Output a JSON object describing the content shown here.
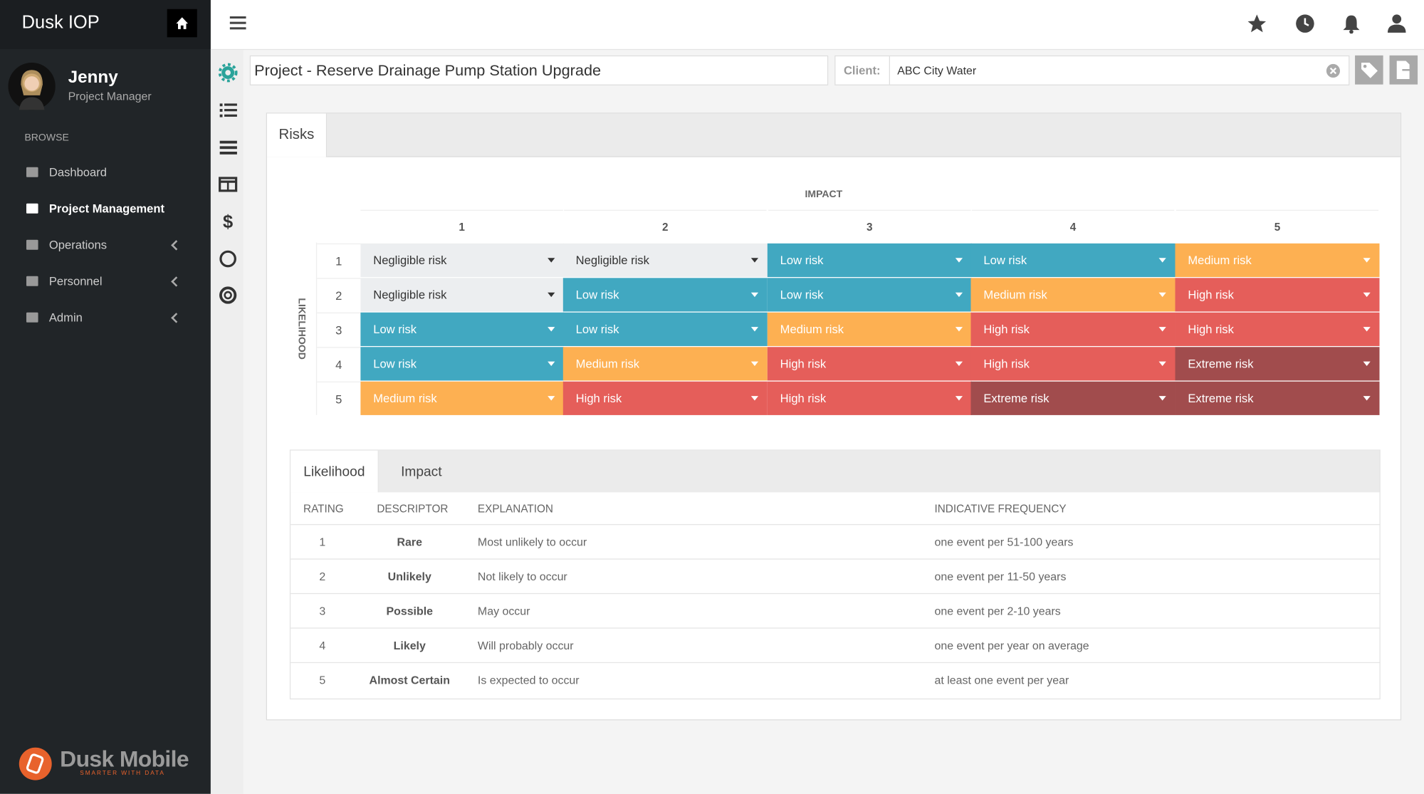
{
  "sidebar": {
    "brand": "Dusk IOP",
    "user": {
      "name": "Jenny",
      "role": "Project Manager"
    },
    "section": "BROWSE",
    "nav": [
      {
        "label": "Dashboard",
        "active": false,
        "expandable": false
      },
      {
        "label": "Project Management",
        "active": true,
        "expandable": false
      },
      {
        "label": "Operations",
        "active": false,
        "expandable": true
      },
      {
        "label": "Personnel",
        "active": false,
        "expandable": true
      },
      {
        "label": "Admin",
        "active": false,
        "expandable": true
      }
    ],
    "footer": {
      "logo": "Dusk Mobile",
      "tagline": "SMARTER WITH DATA"
    }
  },
  "header": {
    "project_title": "Project - Reserve Drainage Pump Station Upgrade",
    "client_label": "Client:",
    "client_value": "ABC City Water"
  },
  "panel": {
    "tab": "Risks",
    "matrix": {
      "impact_label": "IMPACT",
      "likelihood_label": "LIKELIHOOD",
      "columns": [
        1,
        2,
        3,
        4,
        5
      ],
      "rows": [
        {
          "rating": 1,
          "cells": [
            {
              "label": "Negligible risk",
              "color": "#eceef0"
            },
            {
              "label": "Negligible risk",
              "color": "#eceef0"
            },
            {
              "label": "Low risk",
              "color": "#41a8c1"
            },
            {
              "label": "Low risk",
              "color": "#41a8c1"
            },
            {
              "label": "Medium risk",
              "color": "#fdb052"
            }
          ]
        },
        {
          "rating": 2,
          "cells": [
            {
              "label": "Negligible risk",
              "color": "#eceef0"
            },
            {
              "label": "Low risk",
              "color": "#41a8c1"
            },
            {
              "label": "Low risk",
              "color": "#41a8c1"
            },
            {
              "label": "Medium risk",
              "color": "#fdb052"
            },
            {
              "label": "High risk",
              "color": "#e55e5a"
            }
          ]
        },
        {
          "rating": 3,
          "cells": [
            {
              "label": "Low risk",
              "color": "#41a8c1"
            },
            {
              "label": "Low risk",
              "color": "#41a8c1"
            },
            {
              "label": "Medium risk",
              "color": "#fdb052"
            },
            {
              "label": "High risk",
              "color": "#e55e5a"
            },
            {
              "label": "High risk",
              "color": "#e55e5a"
            }
          ]
        },
        {
          "rating": 4,
          "cells": [
            {
              "label": "Low risk",
              "color": "#41a8c1"
            },
            {
              "label": "Medium risk",
              "color": "#fdb052"
            },
            {
              "label": "High risk",
              "color": "#e55e5a"
            },
            {
              "label": "High risk",
              "color": "#e55e5a"
            },
            {
              "label": "Extreme risk",
              "color": "#a14c4d"
            }
          ]
        },
        {
          "rating": 5,
          "cells": [
            {
              "label": "Medium risk",
              "color": "#fdb052"
            },
            {
              "label": "High risk",
              "color": "#e55e5a"
            },
            {
              "label": "High risk",
              "color": "#e55e5a"
            },
            {
              "label": "Extreme risk",
              "color": "#a14c4d"
            },
            {
              "label": "Extreme risk",
              "color": "#a14c4d"
            }
          ]
        }
      ]
    },
    "scale_table": {
      "tabs": [
        "Likelihood",
        "Impact"
      ],
      "headers": [
        "RATING",
        "DESCRIPTOR",
        "EXPLANATION",
        "INDICATIVE FREQUENCY"
      ],
      "rows": [
        [
          1,
          "Rare",
          "Most unlikely to occur",
          "one event per 51-100 years"
        ],
        [
          2,
          "Unlikely",
          "Not likely to occur",
          "one event per 11-50 years"
        ],
        [
          3,
          "Possible",
          "May occur",
          "one event per 2-10 years"
        ],
        [
          4,
          "Likely",
          "Will probably occur",
          "one event per year on average"
        ],
        [
          5,
          "Almost Certain",
          "Is expected to occur",
          "at least one event per year"
        ]
      ]
    }
  }
}
